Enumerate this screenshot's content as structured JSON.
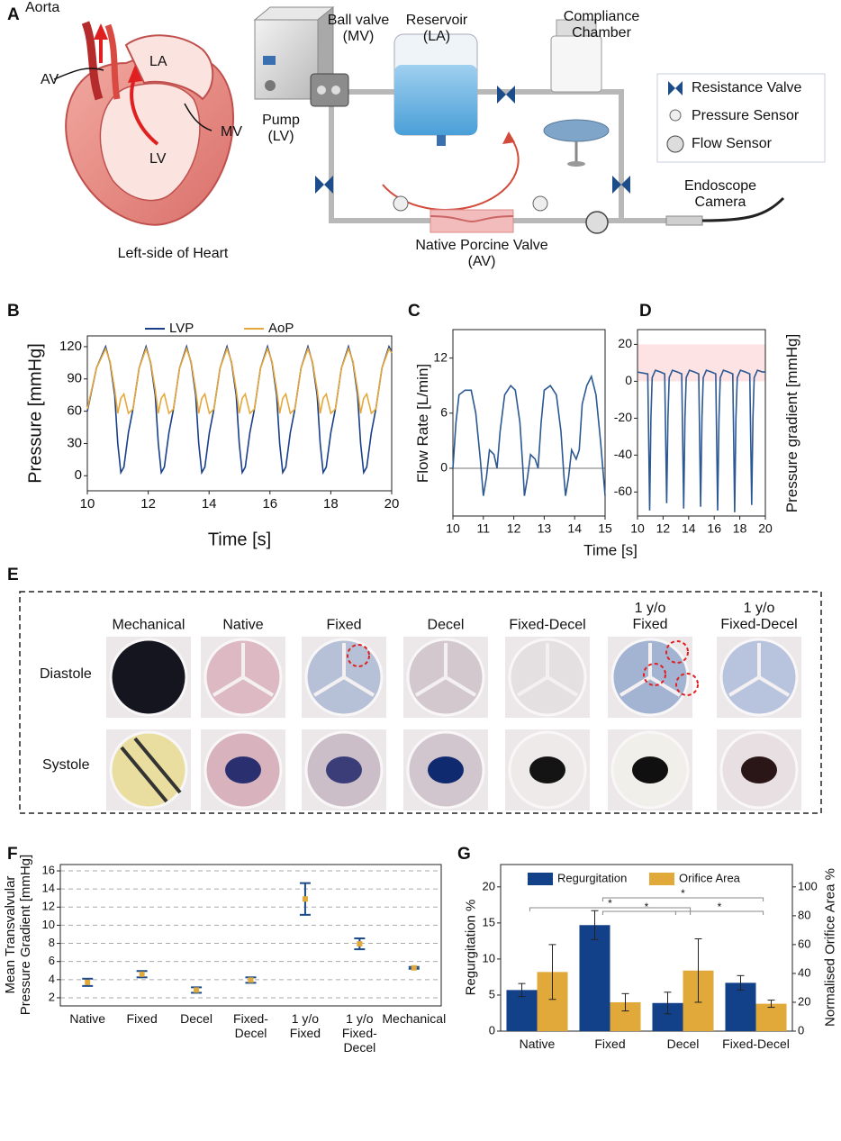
{
  "panel_a": {
    "label": "A",
    "heart_labels": {
      "aorta": "Aorta",
      "av": "AV",
      "la": "LA",
      "mv": "MV",
      "lv": "LV",
      "caption": "Left-side of Heart"
    },
    "loop_labels": {
      "ball_valve": "Ball valve\n(MV)",
      "reservoir": "Reservoir\n(LA)",
      "compliance": "Compliance\nChamber",
      "pump": "Pump\n(LV)",
      "valve": "Native Porcine Valve\n(AV)",
      "camera": "Endoscope\nCamera"
    },
    "legend": [
      "Resistance Valve",
      "Pressure Sensor",
      "Flow Sensor"
    ]
  },
  "chart_data": [
    {
      "label": "B",
      "type": "line",
      "xlabel": "Time [s]",
      "ylabel": "Pressure [mmHg]",
      "legend": "top",
      "grid": false,
      "xlim": [
        10,
        20
      ],
      "xticks": [
        10,
        12,
        14,
        16,
        18,
        20
      ],
      "ylim": [
        -14,
        130
      ],
      "yticks": [
        0,
        30,
        60,
        90,
        120
      ],
      "x": [
        10,
        10.3,
        10.6,
        10.75,
        10.9,
        11.0,
        11.1,
        11.2,
        11.35,
        11.5,
        11.7,
        11.93,
        12.08,
        12.23,
        12.33,
        12.43,
        12.53,
        12.68,
        12.83,
        13.03,
        13.26,
        13.41,
        13.56,
        13.66,
        13.76,
        13.86,
        14.01,
        14.16,
        14.36,
        14.59,
        14.74,
        14.89,
        14.99,
        15.09,
        15.19,
        15.34,
        15.49,
        15.69,
        15.92,
        16.07,
        16.22,
        16.32,
        16.42,
        16.52,
        16.67,
        16.82,
        17.02,
        17.25,
        17.4,
        17.55,
        17.65,
        17.75,
        17.85,
        18.0,
        18.15,
        18.35,
        18.58,
        18.73,
        18.88,
        18.98,
        19.08,
        19.18,
        19.33,
        19.48,
        19.68,
        19.91,
        20
      ],
      "series": [
        {
          "name": "LVP",
          "color": "#1a3f8a",
          "values": [
            60,
            100,
            120,
            105,
            75,
            30,
            3,
            8,
            40,
            62,
            100,
            120,
            105,
            75,
            30,
            3,
            8,
            40,
            62,
            100,
            120,
            105,
            75,
            30,
            3,
            8,
            40,
            62,
            100,
            120,
            105,
            75,
            30,
            3,
            8,
            40,
            62,
            100,
            120,
            105,
            75,
            30,
            3,
            8,
            40,
            62,
            100,
            120,
            105,
            75,
            30,
            3,
            8,
            40,
            62,
            100,
            120,
            105,
            75,
            30,
            3,
            8,
            40,
            62,
            100,
            120,
            115
          ]
        },
        {
          "name": "AoP",
          "color": "#e6a83a",
          "values": [
            62,
            100,
            118,
            106,
            80,
            58,
            72,
            76,
            58,
            62,
            100,
            118,
            106,
            80,
            58,
            72,
            76,
            58,
            62,
            100,
            118,
            106,
            80,
            58,
            72,
            76,
            58,
            62,
            100,
            118,
            106,
            80,
            58,
            72,
            76,
            58,
            62,
            100,
            118,
            106,
            80,
            58,
            72,
            76,
            58,
            62,
            100,
            118,
            106,
            80,
            58,
            72,
            76,
            58,
            62,
            100,
            118,
            106,
            80,
            58,
            72,
            76,
            58,
            62,
            100,
            118,
            114
          ]
        }
      ]
    },
    {
      "label": "C",
      "type": "line",
      "xlabel": "Time [s]",
      "ylabel": "Flow Rate [L/min]",
      "grid": false,
      "hline": 0,
      "color": "#2c5894",
      "xlim": [
        10,
        15
      ],
      "xticks": [
        10,
        11,
        12,
        13,
        14,
        15
      ],
      "ylim": [
        -5.2,
        15.1
      ],
      "yticks": [
        0,
        6,
        12
      ],
      "x": [
        10,
        10.1,
        10.2,
        10.4,
        10.6,
        10.75,
        10.9,
        11.0,
        11.1,
        11.2,
        11.35,
        11.45,
        11.55,
        11.7,
        11.9,
        12.05,
        12.2,
        12.3,
        12.35,
        12.45,
        12.55,
        12.7,
        12.8,
        12.9,
        13.0,
        13.2,
        13.4,
        13.55,
        13.65,
        13.7,
        13.8,
        13.9,
        14.05,
        14.15,
        14.25,
        14.4,
        14.55,
        14.7,
        14.85,
        15
      ],
      "values": [
        0,
        5,
        8,
        8.5,
        8.5,
        6,
        1,
        -3,
        -1,
        2,
        1.5,
        0,
        4,
        8,
        9,
        8.5,
        5,
        0,
        -3,
        -1,
        1.5,
        1,
        0,
        5,
        8.5,
        9,
        8,
        4,
        -1,
        -3,
        -1,
        2,
        1,
        2,
        7,
        9,
        10,
        8,
        3,
        -3
      ]
    },
    {
      "label": "D",
      "type": "line",
      "ylabel": "Pressure gradient [mmHg]",
      "grid": false,
      "color": "#2c5894",
      "shaded_range": [
        0,
        20
      ],
      "shaded_color": "#fde3e3",
      "xlim": [
        10,
        20
      ],
      "xticks": [
        10,
        12,
        14,
        16,
        18,
        20
      ],
      "ylim": [
        -73,
        28
      ],
      "yticks": [
        -60,
        -40,
        -20,
        0,
        20
      ],
      "x": [
        10,
        10.8,
        10.95,
        11.05,
        11.15,
        11.4,
        11.8,
        12.13,
        12.28,
        12.38,
        12.48,
        12.73,
        13.13,
        13.46,
        13.61,
        13.71,
        13.81,
        14.06,
        14.46,
        14.79,
        14.94,
        15.04,
        15.14,
        15.39,
        15.79,
        16.12,
        16.27,
        16.37,
        16.47,
        16.72,
        17.12,
        17.45,
        17.6,
        17.7,
        17.8,
        18.05,
        18.45,
        18.78,
        18.93,
        19.03,
        19.13,
        19.38,
        19.78,
        20
      ],
      "values": [
        5,
        4,
        -70,
        -20,
        2,
        6,
        5,
        4,
        -66,
        -20,
        2,
        6,
        5,
        4,
        -69,
        -20,
        2,
        6,
        5,
        4,
        -68,
        -20,
        2,
        6,
        5,
        4,
        -70,
        -20,
        2,
        6,
        5,
        4,
        -71,
        -20,
        2,
        6,
        5,
        4,
        -67,
        -20,
        2,
        6,
        5,
        5
      ]
    },
    {
      "label": "F",
      "type": "scatter",
      "ylabel": "Mean Transvalvular\nPressure Gradient [mmHg]",
      "grid": true,
      "color": "#1a4a8a",
      "marker_color": "#e0a93a",
      "categories": [
        "Native",
        "Fixed",
        "Decel",
        "Fixed-\nDecel",
        "1 y/o\nFixed",
        "1 y/o\nFixed-\nDecel",
        "Mechanical"
      ],
      "values": [
        3.7,
        4.6,
        2.85,
        3.95,
        12.9,
        7.95,
        5.3
      ],
      "errors": [
        0.4,
        0.35,
        0.3,
        0.3,
        1.75,
        0.6,
        0.1
      ],
      "ylim": [
        1.1,
        16.7
      ],
      "yticks": [
        2,
        4,
        6,
        8,
        10,
        12,
        14,
        16
      ]
    },
    {
      "label": "G",
      "type": "bar",
      "ylabel": "Regurgitation %",
      "y2label": "Normalised Orifice Area %",
      "legend": "upper center",
      "grid": false,
      "categories": [
        "Native",
        "Fixed",
        "Decel",
        "Fixed-Decel"
      ],
      "series": [
        {
          "name": "Regurgitation",
          "color": "#12418a",
          "values": [
            5.7,
            14.7,
            3.9,
            6.7
          ],
          "errors": [
            0.9,
            2,
            1.5,
            1
          ]
        },
        {
          "name": "Orifice Area",
          "color": "#e0a93a",
          "axis": "y2",
          "values": [
            41,
            20,
            42,
            19
          ],
          "errors": [
            19,
            6,
            22,
            2.5
          ]
        }
      ],
      "ylim": [
        0,
        23.1
      ],
      "yticks": [
        0,
        5,
        10,
        15,
        20
      ],
      "y2lim": [
        0,
        115.5
      ],
      "y2ticks": [
        0,
        20,
        40,
        60,
        80,
        100
      ],
      "significance": [
        {
          "between": [
            0,
            2
          ],
          "label": "*"
        },
        {
          "between": [
            1,
            3
          ],
          "label": "*"
        },
        {
          "between": [
            1,
            2
          ],
          "label": "*"
        },
        {
          "between": [
            2,
            3
          ],
          "label": "*"
        }
      ]
    }
  ],
  "panel_e": {
    "label": "E",
    "columns": [
      "Mechanical",
      "Native",
      "Fixed",
      "Decel",
      "Fixed-Decel",
      "1 y/o\nFixed",
      "1 y/o\nFixed-Decel"
    ],
    "rows": [
      "Diastole",
      "Systole"
    ]
  }
}
